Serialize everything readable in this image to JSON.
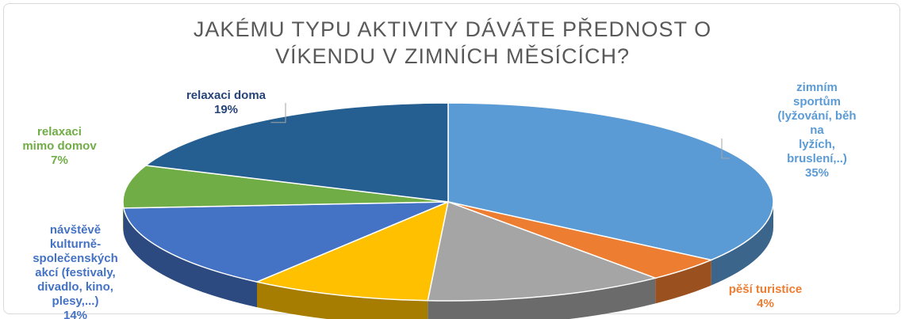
{
  "chart_data": {
    "type": "pie",
    "title": "JAKÉMU TYPU AKTIVITY DÁVÁTE PŘEDNOST O\nVÍKENDU V ZIMNÍCH MĚSÍCÍCH?",
    "categories": [
      "zimním sportům\n(lyžování, běh na\nlyžích, bruslení,..)",
      "pěší turistice",
      null,
      null,
      "návštěvě\nkulturně-\nspolečenských\nakcí (festivaly,\ndivadlo, kino,\nplesy,...)",
      "relaxaci\nmimo domov",
      "relaxaci doma"
    ],
    "values": [
      35,
      4,
      12,
      9,
      14,
      7,
      19
    ],
    "value_labels": [
      "35%",
      "4%",
      null,
      null,
      "14%",
      "7%",
      "19%"
    ],
    "colors": [
      "#5b9bd5",
      "#ed7d31",
      "#a5a5a5",
      "#ffc000",
      "#4472c4",
      "#70ad47",
      "#255e91"
    ]
  }
}
